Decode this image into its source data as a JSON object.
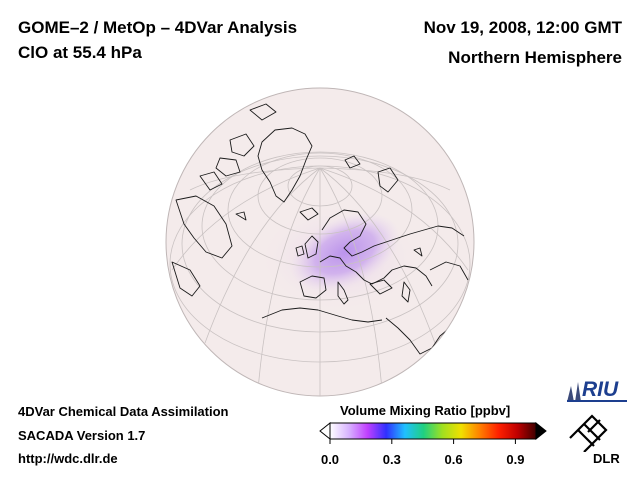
{
  "header": {
    "title": "GOME–2 / MetOp – 4DVar Analysis",
    "species": "ClO at 55.4 hPa",
    "datetime": "Nov 19, 2008, 12:00 GMT",
    "region": "Northern Hemisphere"
  },
  "footer": {
    "line1": "4DVar Chemical Data Assimilation",
    "line2": "SACADA Version 1.7",
    "line3": "http://wdc.dlr.de"
  },
  "colorbar": {
    "title": "Volume Mixing Ratio [ppbv]",
    "range": [
      0.0,
      1.0
    ],
    "ticks": [
      "0.0",
      "0.3",
      "0.6",
      "0.9"
    ],
    "tick_values": [
      0.0,
      0.3,
      0.6,
      0.9
    ],
    "colors": [
      "#ffffff",
      "#d8b4ff",
      "#c040ff",
      "#3030ff",
      "#20c0ff",
      "#20d080",
      "#a0e020",
      "#f0e000",
      "#ff8000",
      "#ff2000",
      "#c00000",
      "#400000"
    ]
  },
  "map": {
    "projection": "orthographic",
    "view": "Northern Hemisphere, centered near Europe",
    "background_color": "#f4ebeb",
    "enhanced_region": "Europe / Scandinavia",
    "enhanced_color": "#c8a4ec"
  },
  "logos": {
    "riu": "RIU",
    "dlr": "DLR"
  }
}
